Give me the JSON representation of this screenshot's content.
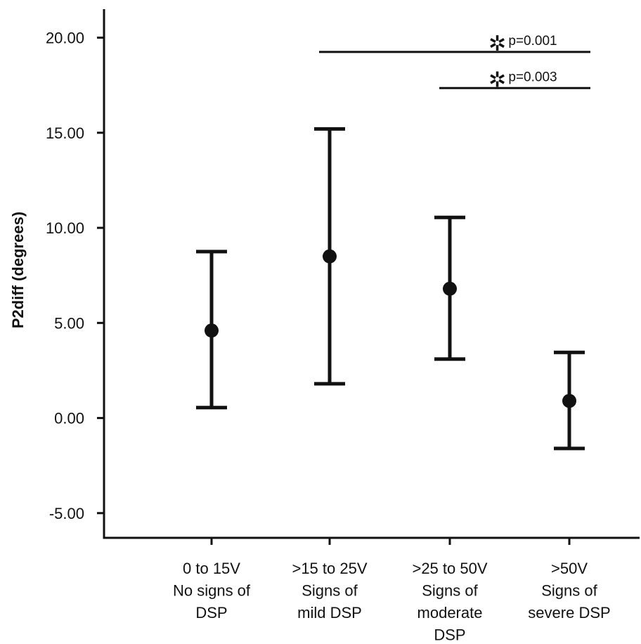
{
  "chart_data": {
    "type": "scatter",
    "title": "",
    "ylabel": "P2diff (degrees)",
    "xlabel": "",
    "ylim": [
      -6.3,
      21.5
    ],
    "yticks": [
      -5,
      0,
      5,
      10,
      15,
      20
    ],
    "ytick_labels": [
      "-5.00",
      "0.00",
      "5.00",
      "10.00",
      "15.00",
      "20.00"
    ],
    "categories": [
      [
        "0 to 15V",
        "No signs of",
        "DSP"
      ],
      [
        ">15 to 25V",
        "Signs of",
        "mild DSP"
      ],
      [
        ">25 to 50V",
        "Signs of",
        "moderate",
        "DSP"
      ],
      [
        ">50V",
        "Signs of",
        "severe DSP"
      ]
    ],
    "means": [
      4.6,
      8.5,
      6.8,
      0.9
    ],
    "upper": [
      8.75,
      15.2,
      10.55,
      3.45
    ],
    "lower": [
      0.55,
      1.8,
      3.1,
      -1.6
    ],
    "significance": [
      {
        "from": 1,
        "to": 3,
        "y": 19.25,
        "label": "p=0.001",
        "marker": "✲"
      },
      {
        "from": 2,
        "to": 3,
        "y": 17.35,
        "label": "p=0.003",
        "marker": "✲"
      }
    ],
    "grid": false,
    "legend": "none"
  }
}
